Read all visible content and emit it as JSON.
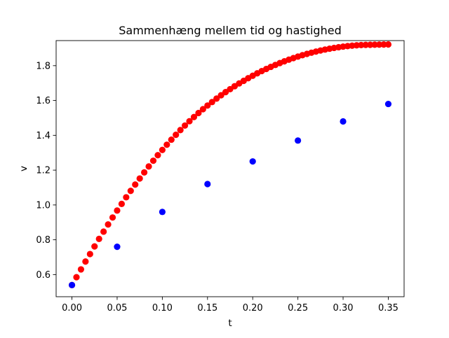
{
  "chart_data": {
    "type": "scatter",
    "title": "Sammenhæng mellem tid og hastighed",
    "xlabel": "t",
    "ylabel": "v",
    "xlim": [
      -0.0175,
      0.3675
    ],
    "ylim": [
      0.473,
      1.944
    ],
    "x_ticks": [
      0.0,
      0.05,
      0.1,
      0.15,
      0.2,
      0.25,
      0.3,
      0.35
    ],
    "x_tick_labels": [
      "0.00",
      "0.05",
      "0.10",
      "0.15",
      "0.20",
      "0.25",
      "0.30",
      "0.35"
    ],
    "y_ticks": [
      0.6,
      0.8,
      1.0,
      1.2,
      1.4,
      1.6,
      1.8
    ],
    "y_tick_labels": [
      "0.6",
      "0.8",
      "1.0",
      "1.2",
      "1.4",
      "1.6",
      "1.8"
    ],
    "grid": false,
    "series": [
      {
        "color": "#ff0000",
        "x": [
          0.0,
          0.005,
          0.01,
          0.015,
          0.02,
          0.025,
          0.03,
          0.035,
          0.04,
          0.045,
          0.05,
          0.055,
          0.06,
          0.065,
          0.07,
          0.075,
          0.08,
          0.085,
          0.09,
          0.095,
          0.1,
          0.105,
          0.11,
          0.115,
          0.12,
          0.125,
          0.13,
          0.135,
          0.14,
          0.145,
          0.15,
          0.155,
          0.16,
          0.165,
          0.17,
          0.175,
          0.18,
          0.185,
          0.19,
          0.195,
          0.2,
          0.205,
          0.21,
          0.215,
          0.22,
          0.225,
          0.23,
          0.235,
          0.24,
          0.245,
          0.25,
          0.255,
          0.26,
          0.265,
          0.27,
          0.275,
          0.28,
          0.285,
          0.29,
          0.295,
          0.3,
          0.305,
          0.31,
          0.315,
          0.32,
          0.325,
          0.33,
          0.335,
          0.34,
          0.345,
          0.35
        ],
        "y": [
          0.54,
          0.585,
          0.63,
          0.675,
          0.718,
          0.762,
          0.805,
          0.847,
          0.888,
          0.928,
          0.968,
          1.006,
          1.044,
          1.081,
          1.117,
          1.152,
          1.187,
          1.221,
          1.254,
          1.286,
          1.316,
          1.346,
          1.375,
          1.403,
          1.43,
          1.456,
          1.481,
          1.505,
          1.528,
          1.55,
          1.571,
          1.591,
          1.611,
          1.63,
          1.648,
          1.665,
          1.682,
          1.698,
          1.713,
          1.728,
          1.742,
          1.756,
          1.769,
          1.781,
          1.793,
          1.804,
          1.815,
          1.825,
          1.8345,
          1.8435,
          1.852,
          1.86,
          1.8675,
          1.8745,
          1.881,
          1.887,
          1.8925,
          1.8975,
          1.902,
          1.906,
          1.9095,
          1.9125,
          1.915,
          1.917,
          1.9185,
          1.9195,
          1.92,
          1.9205,
          1.921,
          1.9215,
          1.922
        ]
      },
      {
        "color": "#0000ff",
        "x": [
          0.0,
          0.05,
          0.1,
          0.15,
          0.2,
          0.25,
          0.3,
          0.35
        ],
        "y": [
          0.54,
          0.76,
          0.96,
          1.12,
          1.25,
          1.37,
          1.48,
          1.58
        ]
      }
    ]
  }
}
